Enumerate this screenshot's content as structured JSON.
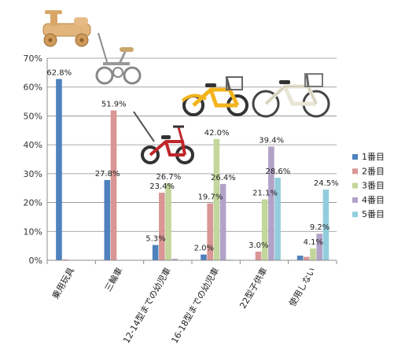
{
  "chart_data": {
    "type": "bar",
    "categories": [
      "乗用玩具",
      "三輪車",
      "12-14型までの幼児車",
      "16-18型までの幼児車",
      "22型子供車",
      "使用しない"
    ],
    "series": [
      {
        "name": "1番目",
        "color": "#4f81bd",
        "values": [
          62.8,
          27.8,
          5.3,
          2.0,
          0.0,
          1.6
        ]
      },
      {
        "name": "2番目",
        "color": "#d99694",
        "values": [
          0.3,
          51.9,
          23.4,
          19.7,
          3.0,
          1.2
        ]
      },
      {
        "name": "3番目",
        "color": "#c3d69b",
        "values": [
          0.0,
          0.0,
          26.7,
          42.0,
          21.1,
          4.1
        ]
      },
      {
        "name": "4番目",
        "color": "#b3a2c7",
        "values": [
          0.0,
          0.0,
          0.5,
          26.4,
          39.4,
          9.2
        ]
      },
      {
        "name": "5番目",
        "color": "#93cddd",
        "values": [
          0.0,
          0.0,
          0.0,
          0.2,
          28.6,
          24.5
        ]
      }
    ],
    "data_labels": [
      {
        "series": 0,
        "category": 0,
        "text": "62.8%"
      },
      {
        "series": 0,
        "category": 1,
        "text": "27.8%"
      },
      {
        "series": 1,
        "category": 1,
        "text": "51.9%"
      },
      {
        "series": 0,
        "category": 2,
        "text": "5.3%"
      },
      {
        "series": 1,
        "category": 2,
        "text": "23.4%"
      },
      {
        "series": 2,
        "category": 2,
        "text": "26.7%"
      },
      {
        "series": 0,
        "category": 3,
        "text": "2.0%"
      },
      {
        "series": 1,
        "category": 3,
        "text": "19.7%"
      },
      {
        "series": 2,
        "category": 3,
        "text": "42.0%"
      },
      {
        "series": 3,
        "category": 3,
        "text": "26.4%"
      },
      {
        "series": 1,
        "category": 4,
        "text": "3.0%"
      },
      {
        "series": 2,
        "category": 4,
        "text": "21.1%"
      },
      {
        "series": 3,
        "category": 4,
        "text": "39.4%"
      },
      {
        "series": 4,
        "category": 4,
        "text": "28.6%"
      },
      {
        "series": 2,
        "category": 5,
        "text": "4.1%"
      },
      {
        "series": 3,
        "category": 5,
        "text": "9.2%"
      },
      {
        "series": 4,
        "category": 5,
        "text": "24.5%"
      }
    ],
    "yticks": [
      "0%",
      "10%",
      "20%",
      "30%",
      "40%",
      "50%",
      "60%",
      "70%"
    ],
    "ylim": [
      0,
      70
    ],
    "grid": true,
    "legend_position": "right",
    "title": "",
    "xlabel": "",
    "ylabel": ""
  },
  "illustrations": [
    {
      "icon": "wooden-ride-on-toy-icon"
    },
    {
      "icon": "tricycle-icon"
    },
    {
      "icon": "red-toddler-bike-icon"
    },
    {
      "icon": "yellow-kids-bike-icon"
    },
    {
      "icon": "white-kids-bike-icon"
    }
  ]
}
